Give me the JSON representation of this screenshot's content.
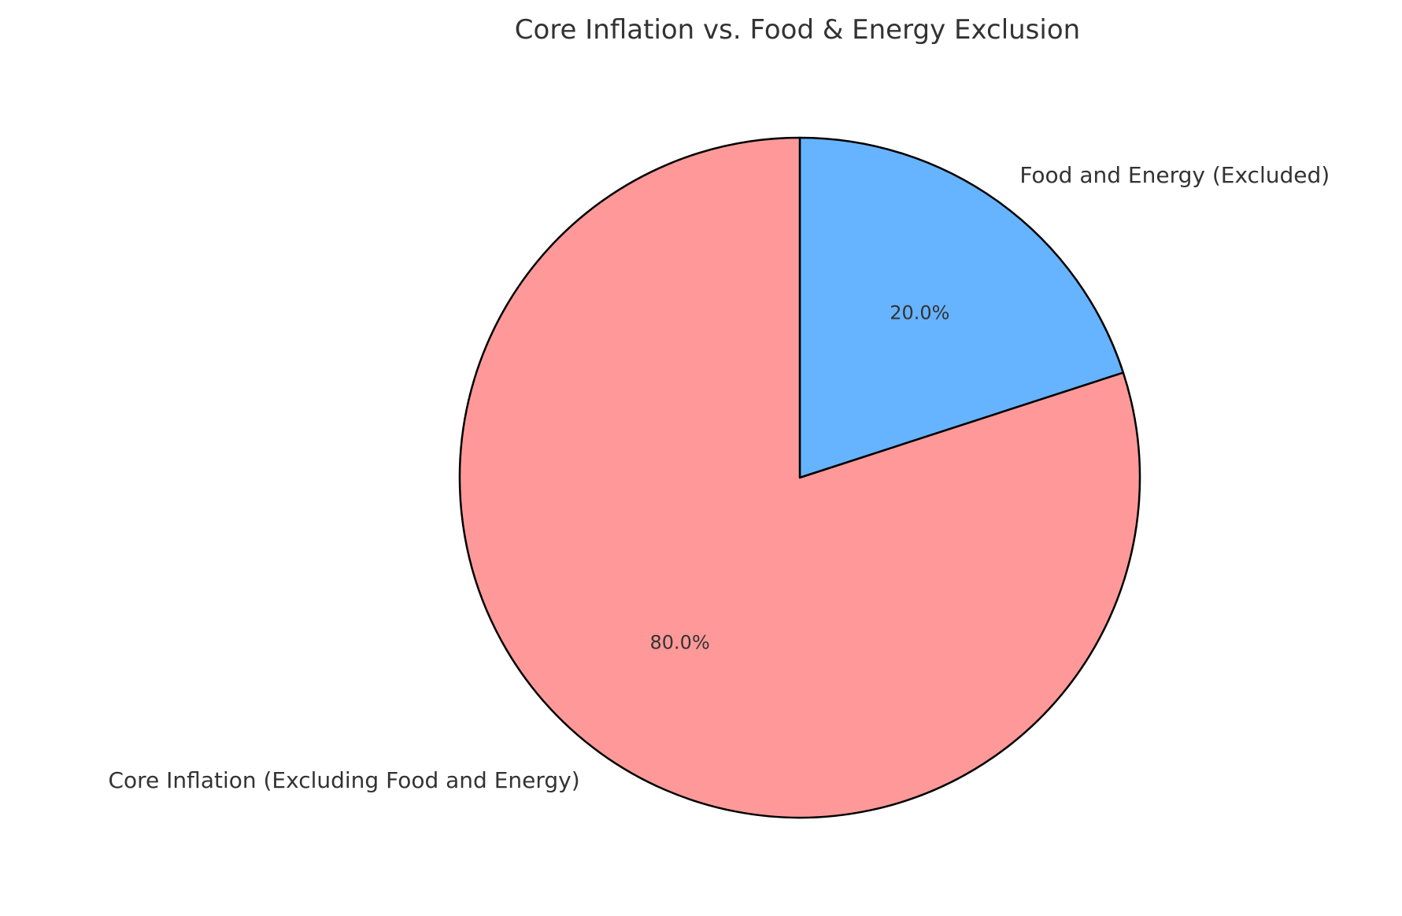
{
  "chart_data": {
    "type": "pie",
    "title": "Core Inflation vs. Food & Energy Exclusion",
    "labels": [
      "Food and Energy (Excluded)",
      "Core Inflation (Excluding Food and Energy)"
    ],
    "values": [
      20.0,
      80.0
    ],
    "percent_labels": [
      "20.0%",
      "80.0%"
    ],
    "colors": [
      "#66b3ff",
      "#ff9999"
    ],
    "edge_color": "#000000",
    "start": "top",
    "direction": "clockwise"
  }
}
